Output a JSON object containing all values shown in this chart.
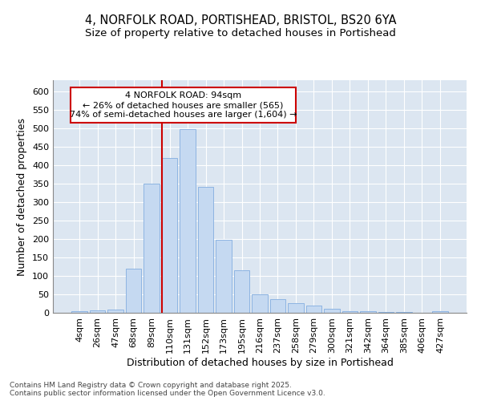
{
  "title_line1": "4, NORFOLK ROAD, PORTISHEAD, BRISTOL, BS20 6YA",
  "title_line2": "Size of property relative to detached houses in Portishead",
  "xlabel": "Distribution of detached houses by size in Portishead",
  "ylabel": "Number of detached properties",
  "bar_labels": [
    "4sqm",
    "26sqm",
    "47sqm",
    "68sqm",
    "89sqm",
    "110sqm",
    "131sqm",
    "152sqm",
    "173sqm",
    "195sqm",
    "216sqm",
    "237sqm",
    "258sqm",
    "279sqm",
    "300sqm",
    "321sqm",
    "342sqm",
    "364sqm",
    "385sqm",
    "406sqm",
    "427sqm"
  ],
  "bar_values": [
    5,
    6,
    8,
    120,
    350,
    420,
    497,
    340,
    197,
    115,
    50,
    37,
    25,
    20,
    10,
    5,
    4,
    2,
    2,
    1,
    5
  ],
  "bar_color": "#c5d9f1",
  "bar_edge_color": "#8db4e2",
  "vline_color": "#cc0000",
  "annotation_text": "4 NORFOLK ROAD: 94sqm\n← 26% of detached houses are smaller (565)\n74% of semi-detached houses are larger (1,604) →",
  "annotation_box_color": "#cc0000",
  "annotation_fill": "white",
  "ylim": [
    0,
    630
  ],
  "yticks": [
    0,
    50,
    100,
    150,
    200,
    250,
    300,
    350,
    400,
    450,
    500,
    550,
    600
  ],
  "plot_background_color": "#dce6f1",
  "footer_text": "Contains HM Land Registry data © Crown copyright and database right 2025.\nContains public sector information licensed under the Open Government Licence v3.0.",
  "title_fontsize": 10.5,
  "subtitle_fontsize": 9.5,
  "tick_fontsize": 8,
  "xlabel_fontsize": 9,
  "ylabel_fontsize": 9,
  "footer_fontsize": 6.5
}
